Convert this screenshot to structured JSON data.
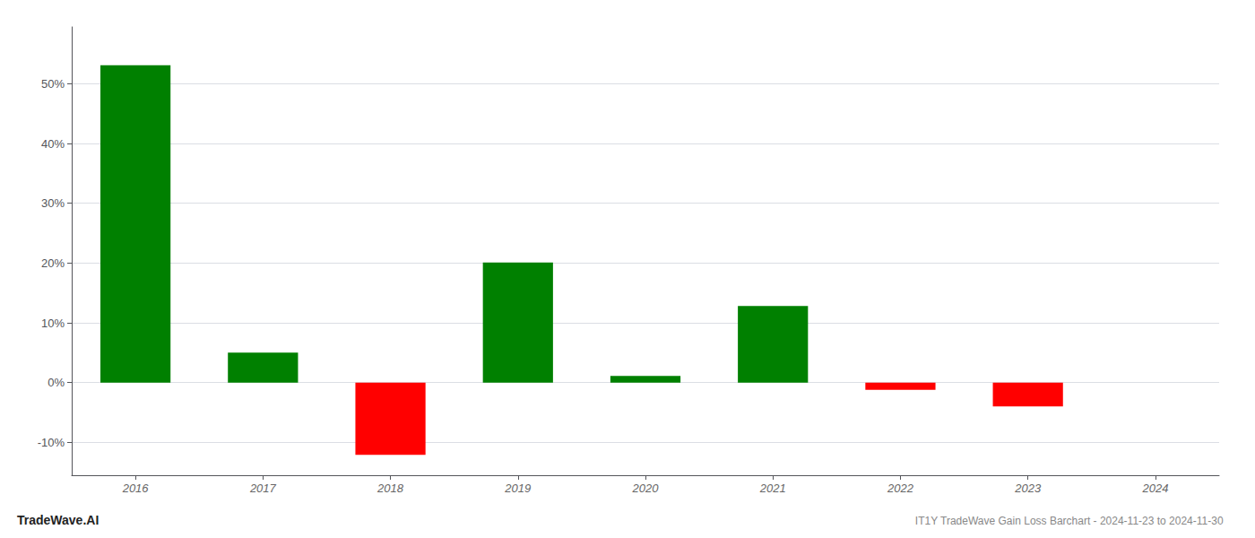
{
  "chart_data": {
    "type": "bar",
    "title": "IT1Y TradeWave Gain Loss Barchart - 2024-11-23 to 2024-11-30",
    "annotations": [
      "TradeWave.AI"
    ],
    "categories": [
      "2016",
      "2017",
      "2018",
      "2019",
      "2020",
      "2021",
      "2022",
      "2023",
      "2024"
    ],
    "values": [
      0.531,
      0.05,
      -0.121,
      0.201,
      0.011,
      0.128,
      -0.012,
      -0.04,
      0
    ],
    "colors": [
      "#008000",
      "#008000",
      "#ff0000",
      "#008000",
      "#008000",
      "#008000",
      "#ff0000",
      "#ff0000",
      "#008000"
    ],
    "ylim": [
      -0.155,
      0.595
    ],
    "yticks": [
      {
        "value": -0.1,
        "label": "-10%"
      },
      {
        "value": 0,
        "label": "0%"
      },
      {
        "value": 0.1,
        "label": "10%"
      },
      {
        "value": 0.2,
        "label": "20%"
      },
      {
        "value": 0.3,
        "label": "30%"
      },
      {
        "value": 0.4,
        "label": "40%"
      },
      {
        "value": 0.5,
        "label": "50%"
      }
    ],
    "grid": true
  }
}
